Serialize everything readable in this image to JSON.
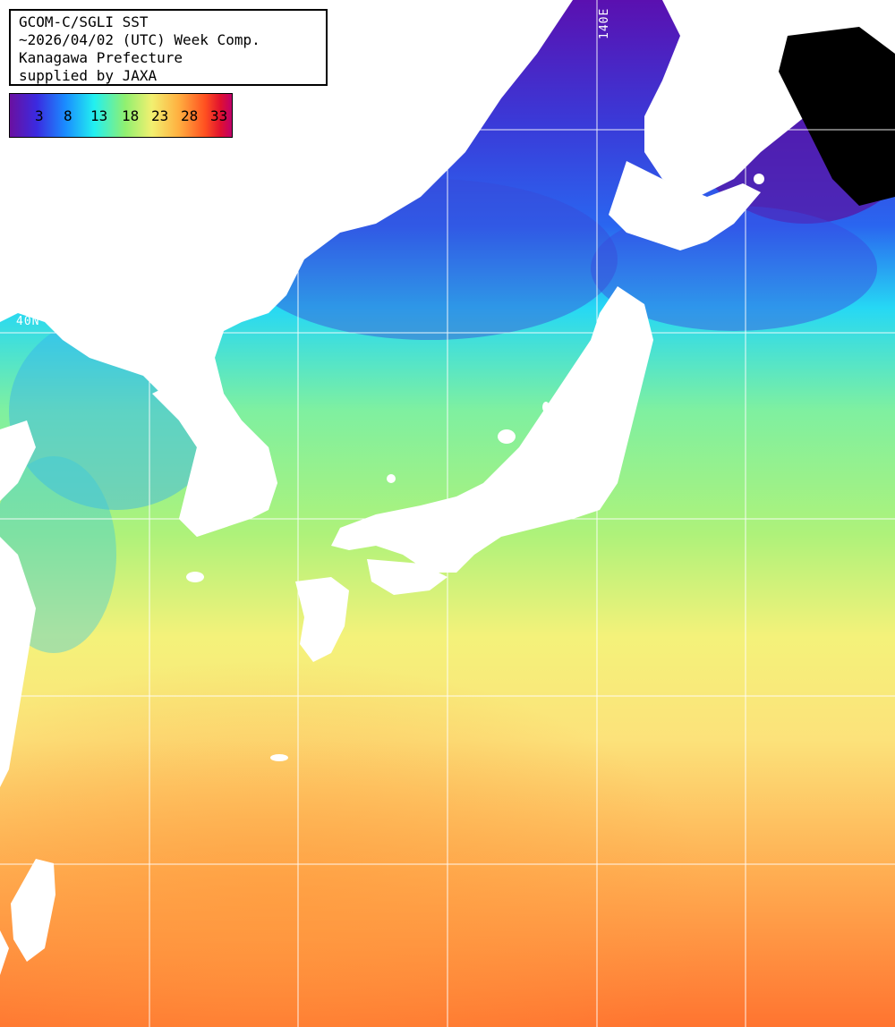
{
  "header": {
    "line1": "GCOM-C/SGLI SST",
    "line2": "~2026/04/02 (UTC) Week Comp.",
    "line3": "Kanagawa Prefecture",
    "line4": "supplied by JAXA"
  },
  "legend": {
    "ticks": [
      "3",
      "8",
      "13",
      "18",
      "23",
      "28",
      "33"
    ],
    "colors": [
      "#5a0fa0",
      "#2a3fe0",
      "#1fa0ff",
      "#2ff0f0",
      "#8ff07a",
      "#f0f078",
      "#ffb040",
      "#ff6a20",
      "#e01030",
      "#c0006a"
    ]
  },
  "grid": {
    "lon_label": "140E",
    "lat_label": "40N"
  }
}
